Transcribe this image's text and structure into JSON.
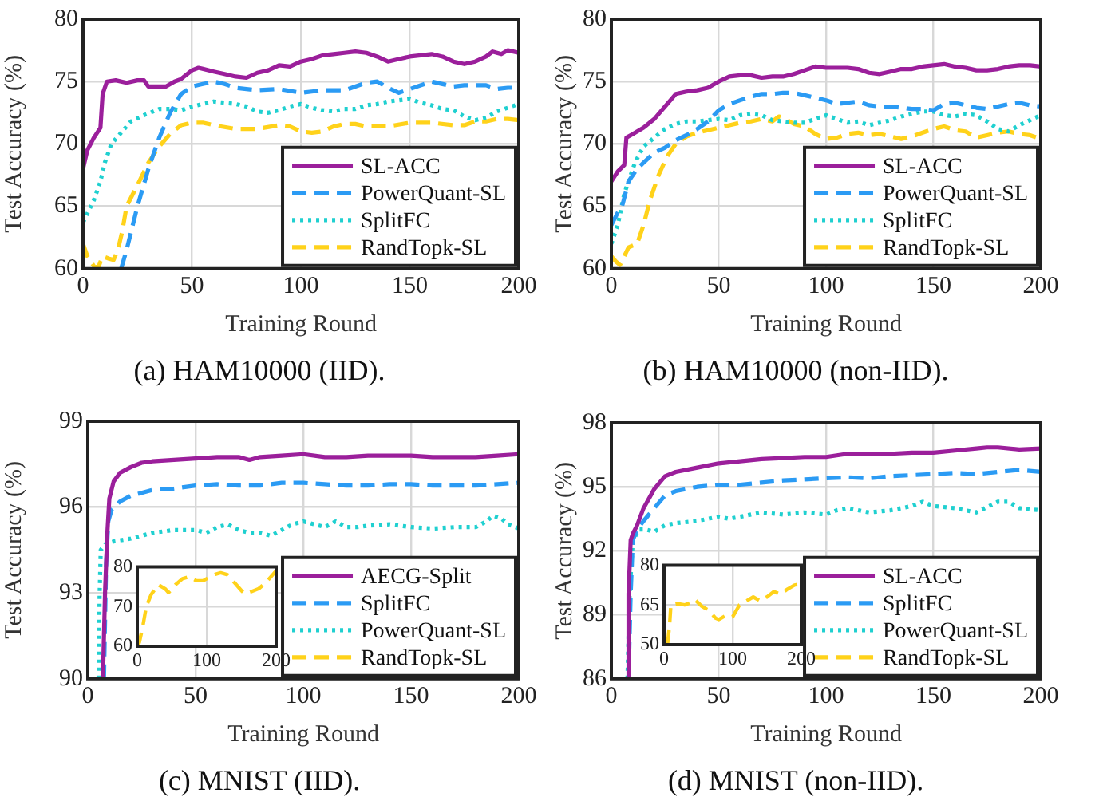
{
  "chart_data": [
    {
      "type": "line",
      "title": "(a) HAM10000 (IID).",
      "xlabel": "Training Round",
      "ylabel": "Test Accuracy (%)",
      "xlim": [
        0,
        200
      ],
      "xticks": [
        0,
        50,
        100,
        150,
        200
      ],
      "ylim": [
        60,
        80
      ],
      "yticks": [
        60,
        65,
        70,
        75,
        80
      ],
      "grid": true,
      "legend": "bottom right",
      "series": [
        {
          "name": "SL-ACC",
          "color": "#9b1f9b",
          "line_style": "solid",
          "x": [
            0,
            2,
            5,
            8,
            9,
            11,
            15,
            20,
            25,
            28,
            30,
            38,
            42,
            45,
            50,
            53,
            60,
            65,
            70,
            75,
            80,
            85,
            90,
            95,
            100,
            105,
            110,
            115,
            120,
            125,
            130,
            135,
            140,
            145,
            150,
            155,
            160,
            165,
            170,
            175,
            180,
            185,
            188,
            192,
            195,
            200
          ],
          "values": [
            68,
            69.5,
            70.5,
            71.3,
            74,
            75,
            75.1,
            74.9,
            75.1,
            75.1,
            74.6,
            74.6,
            75,
            75.2,
            75.9,
            76.1,
            75.8,
            75.6,
            75.4,
            75.3,
            75.7,
            75.9,
            76.3,
            76.2,
            76.6,
            76.8,
            77.1,
            77.2,
            77.3,
            77.4,
            77.3,
            77,
            76.6,
            76.8,
            77,
            77.1,
            77.2,
            77,
            76.6,
            76.4,
            76.6,
            77,
            77.4,
            77.2,
            77.5,
            77.3
          ]
        },
        {
          "name": "PowerQuant-SL",
          "color": "#2b9bf4",
          "line_style": "dashed",
          "x": [
            17.5,
            20,
            25,
            30,
            35,
            40,
            45,
            50,
            55,
            60,
            65,
            70,
            80,
            90,
            100,
            105,
            110,
            120,
            130,
            135,
            140,
            145,
            150,
            160,
            170,
            175,
            185,
            190,
            195,
            200
          ],
          "values": [
            60,
            61.5,
            65,
            68,
            70.5,
            72.5,
            74,
            74.6,
            74.8,
            75,
            74.8,
            74.5,
            74.3,
            74.4,
            74.1,
            74.2,
            74.3,
            74.3,
            74.9,
            75,
            74.5,
            74.1,
            74.4,
            75,
            74.6,
            74.7,
            74.7,
            74.4,
            74.5,
            74.5
          ]
        },
        {
          "name": "SplitFC",
          "color": "#1fd0d0",
          "line_style": "dotted",
          "x": [
            0,
            5,
            8,
            10,
            13,
            18,
            22,
            28,
            35,
            40,
            45,
            50,
            55,
            60,
            65,
            70,
            75,
            80,
            85,
            90,
            95,
            100,
            105,
            110,
            115,
            120,
            125,
            130,
            135,
            140,
            145,
            150,
            155,
            160,
            165,
            170,
            175,
            180,
            185,
            190,
            195,
            200
          ],
          "values": [
            63.7,
            65.5,
            67,
            68.5,
            70,
            71,
            71.8,
            72.3,
            72.8,
            72.8,
            72.7,
            73,
            73.2,
            73.4,
            73.3,
            73.2,
            73,
            72.6,
            72.5,
            72.7,
            73,
            73.2,
            72.9,
            72.7,
            72.6,
            72.8,
            72.8,
            73.1,
            73.2,
            73.4,
            73.5,
            73.6,
            73.3,
            73.1,
            72.8,
            72.7,
            72.2,
            71.9,
            72.1,
            72.6,
            72.9,
            73.2
          ]
        },
        {
          "name": "RandTopk-SL",
          "color": "#ffd21a",
          "line_style": "dashed",
          "x": [
            0,
            2,
            5,
            7,
            9,
            12,
            14,
            16,
            18,
            20,
            25,
            30,
            35,
            40,
            45,
            50,
            55,
            60,
            70,
            80,
            90,
            95,
            100,
            105,
            110,
            115,
            120,
            125,
            130,
            140,
            150,
            160,
            170,
            175,
            180,
            185,
            190,
            195,
            200
          ],
          "values": [
            62,
            61,
            60.2,
            60.1,
            61,
            60.8,
            60.7,
            61.5,
            63,
            65,
            66.7,
            68.5,
            69.8,
            70.8,
            71.5,
            71.7,
            71.7,
            71.5,
            71.2,
            71.2,
            71.5,
            71.4,
            71,
            70.9,
            71,
            71.4,
            71.6,
            71.6,
            71.4,
            71.4,
            71.7,
            71.7,
            71.5,
            71.5,
            71.8,
            71.8,
            72,
            72,
            71.9
          ]
        }
      ]
    },
    {
      "type": "line",
      "title": "(b) HAM10000 (non-IID).",
      "xlabel": "Training Round",
      "ylabel": "Test Accuracy (%)",
      "xlim": [
        0,
        200
      ],
      "xticks": [
        0,
        50,
        100,
        150,
        200
      ],
      "ylim": [
        60,
        80
      ],
      "yticks": [
        60,
        65,
        70,
        75,
        80
      ],
      "grid": true,
      "legend": "bottom right",
      "series": [
        {
          "name": "SL-ACC",
          "color": "#9b1f9b",
          "line_style": "solid",
          "x": [
            0,
            3,
            6,
            7,
            10,
            15,
            20,
            25,
            30,
            35,
            40,
            45,
            50,
            55,
            60,
            65,
            70,
            75,
            80,
            85,
            90,
            95,
            100,
            105,
            110,
            115,
            120,
            125,
            130,
            135,
            140,
            145,
            150,
            155,
            160,
            165,
            170,
            175,
            180,
            185,
            190,
            195,
            200
          ],
          "values": [
            67,
            67.8,
            68.3,
            70.5,
            70.8,
            71.3,
            72,
            73,
            74,
            74.2,
            74.3,
            74.5,
            75,
            75.4,
            75.5,
            75.5,
            75.3,
            75.4,
            75.4,
            75.6,
            75.9,
            76.2,
            76.1,
            76.1,
            76.1,
            76,
            75.7,
            75.6,
            75.8,
            76,
            76,
            76.2,
            76.3,
            76.4,
            76.2,
            76.1,
            75.9,
            75.9,
            76,
            76.2,
            76.3,
            76.3,
            76.2
          ]
        },
        {
          "name": "PowerQuant-SL",
          "color": "#2b9bf4",
          "line_style": "dashed",
          "x": [
            0,
            3,
            5,
            8,
            12,
            15,
            20,
            25,
            30,
            35,
            40,
            45,
            50,
            55,
            60,
            65,
            70,
            75,
            80,
            85,
            90,
            95,
            100,
            105,
            110,
            115,
            120,
            125,
            130,
            135,
            140,
            145,
            150,
            155,
            160,
            165,
            170,
            175,
            180,
            185,
            190,
            195,
            200
          ],
          "values": [
            63.5,
            64.5,
            65,
            67,
            68,
            68.5,
            69.3,
            69.7,
            70.3,
            70.7,
            71.2,
            71.8,
            72.7,
            73.2,
            73.5,
            73.8,
            74,
            74,
            74.1,
            74.1,
            73.9,
            73.7,
            73.5,
            73.2,
            73.3,
            73.4,
            73.1,
            73,
            73,
            72.9,
            72.8,
            72.8,
            72.7,
            73.2,
            73.3,
            73.1,
            72.9,
            72.8,
            73,
            73.2,
            73.3,
            73.1,
            73
          ]
        },
        {
          "name": "SplitFC",
          "color": "#1fd0d0",
          "line_style": "dotted",
          "x": [
            0,
            3,
            6,
            8,
            11,
            15,
            20,
            25,
            30,
            35,
            40,
            45,
            50,
            55,
            60,
            65,
            70,
            75,
            80,
            85,
            90,
            95,
            100,
            105,
            110,
            115,
            120,
            125,
            130,
            135,
            140,
            145,
            150,
            155,
            160,
            165,
            170,
            175,
            180,
            185,
            190,
            195,
            200
          ],
          "values": [
            62,
            63.5,
            66,
            67,
            68.5,
            69.8,
            70.5,
            71.2,
            71.6,
            71.8,
            71.8,
            71.9,
            72,
            71.9,
            72.3,
            72.4,
            72.3,
            71.9,
            71.8,
            71.7,
            71.7,
            72,
            72.3,
            72,
            71.7,
            71.8,
            71.5,
            71.7,
            71.9,
            72.2,
            72.4,
            72.6,
            72.6,
            72.3,
            72.2,
            72.4,
            72.3,
            71.8,
            71.2,
            71,
            71.5,
            71.9,
            72.3
          ]
        },
        {
          "name": "RandTopk-SL",
          "color": "#ffd21a",
          "line_style": "dashed",
          "x": [
            0,
            2,
            4,
            6,
            8,
            12,
            15,
            18,
            22,
            26,
            30,
            35,
            40,
            45,
            50,
            55,
            60,
            65,
            70,
            75,
            78,
            80,
            85,
            90,
            95,
            100,
            105,
            110,
            115,
            120,
            125,
            130,
            135,
            140,
            145,
            150,
            155,
            160,
            165,
            170,
            175,
            180,
            185,
            190,
            195,
            200
          ],
          "values": [
            61,
            60.6,
            60.3,
            61,
            61.7,
            62,
            63.5,
            65.5,
            67.5,
            69,
            70,
            70.6,
            70.9,
            71.1,
            71.3,
            71.5,
            71.7,
            71.8,
            72,
            71.8,
            72.2,
            72.1,
            71.6,
            71.4,
            70.8,
            70.4,
            70.5,
            70.8,
            70.9,
            70.7,
            70.8,
            70.6,
            70.4,
            70.6,
            70.9,
            71.2,
            71.4,
            71.1,
            71,
            70.5,
            70.7,
            70.9,
            71,
            70.8,
            70.7,
            70.4
          ]
        }
      ]
    },
    {
      "type": "line",
      "title": "(c) MNIST (IID).",
      "xlabel": "Training Round",
      "ylabel": "Test Accuracy (%)",
      "xlim": [
        0,
        200
      ],
      "xticks": [
        0,
        50,
        100,
        150,
        200
      ],
      "ylim": [
        90,
        99
      ],
      "yticks": [
        90,
        93,
        96,
        99
      ],
      "grid": true,
      "legend": "bottom right",
      "series": [
        {
          "name": "AECG-Split",
          "color": "#9b1f9b",
          "line_style": "solid",
          "x": [
            7,
            8,
            9,
            10,
            12,
            15,
            20,
            25,
            30,
            40,
            50,
            60,
            70,
            75,
            80,
            90,
            100,
            110,
            120,
            130,
            140,
            150,
            160,
            170,
            180,
            190,
            200
          ],
          "values": [
            90,
            93,
            95,
            96.3,
            96.9,
            97.2,
            97.4,
            97.55,
            97.6,
            97.65,
            97.7,
            97.75,
            97.75,
            97.65,
            97.75,
            97.8,
            97.85,
            97.75,
            97.75,
            97.8,
            97.8,
            97.8,
            97.75,
            97.75,
            97.75,
            97.8,
            97.85
          ]
        },
        {
          "name": "SplitFC",
          "color": "#2b9bf4",
          "line_style": "dashed",
          "x": [
            7.5,
            8.5,
            9.5,
            11,
            15,
            20,
            25,
            30,
            40,
            50,
            60,
            70,
            80,
            90,
            100,
            110,
            120,
            130,
            140,
            150,
            160,
            170,
            180,
            190,
            200
          ],
          "values": [
            90,
            94,
            95.5,
            95.9,
            96.2,
            96.4,
            96.5,
            96.6,
            96.65,
            96.75,
            96.8,
            96.75,
            96.75,
            96.85,
            96.85,
            96.8,
            96.75,
            96.75,
            96.8,
            96.8,
            96.75,
            96.75,
            96.75,
            96.8,
            96.85
          ]
        },
        {
          "name": "PowerQuant-SL",
          "color": "#1fd0d0",
          "line_style": "dotted",
          "x": [
            5,
            5.5,
            6,
            8,
            12,
            20,
            30,
            40,
            50,
            55,
            60,
            65,
            70,
            75,
            80,
            85,
            90,
            95,
            100,
            105,
            110,
            115,
            120,
            125,
            130,
            140,
            150,
            160,
            170,
            180,
            185,
            188,
            192,
            195,
            200
          ],
          "values": [
            90,
            93,
            94.5,
            94.7,
            94.8,
            94.9,
            95.1,
            95.2,
            95.2,
            95.1,
            95.3,
            95.4,
            95.2,
            95.1,
            95.1,
            95,
            95.2,
            95.4,
            95.5,
            95.4,
            95.3,
            95.5,
            95.3,
            95.3,
            95.35,
            95.4,
            95.3,
            95.25,
            95.3,
            95.3,
            95.5,
            95.7,
            95.6,
            95.4,
            95.25
          ]
        },
        {
          "name": "RandTopk-SL",
          "color": "#ffd21a",
          "line_style": "dashed"
        }
      ]
    },
    {
      "type": "line",
      "title": "(d) MNIST (non-IID).",
      "xlabel": "Training Round",
      "ylabel": "Test Accuracy (%)",
      "xlim": [
        0,
        200
      ],
      "xticks": [
        0,
        50,
        100,
        150,
        200
      ],
      "ylim": [
        86,
        98
      ],
      "yticks": [
        86,
        89,
        92,
        95,
        98
      ],
      "grid": true,
      "legend": "bottom right",
      "series": [
        {
          "name": "SL-ACC",
          "color": "#9b1f9b",
          "line_style": "solid",
          "x": [
            7.5,
            8,
            9,
            10,
            12,
            15,
            20,
            25,
            30,
            40,
            50,
            60,
            70,
            80,
            90,
            100,
            110,
            120,
            130,
            140,
            150,
            160,
            170,
            175,
            180,
            190,
            200
          ],
          "values": [
            86,
            90,
            92.5,
            92.8,
            93.2,
            94,
            94.9,
            95.5,
            95.7,
            95.9,
            96.1,
            96.2,
            96.3,
            96.35,
            96.4,
            96.4,
            96.55,
            96.55,
            96.55,
            96.6,
            96.6,
            96.7,
            96.8,
            96.85,
            96.85,
            96.75,
            96.8
          ]
        },
        {
          "name": "SplitFC",
          "color": "#2b9bf4",
          "line_style": "dashed",
          "x": [
            8,
            9,
            10,
            12,
            15,
            20,
            25,
            30,
            40,
            50,
            60,
            70,
            80,
            90,
            100,
            110,
            120,
            130,
            140,
            150,
            160,
            170,
            180,
            190,
            200
          ],
          "values": [
            86,
            90,
            92.5,
            93,
            93.4,
            94,
            94.6,
            94.8,
            95,
            95.1,
            95.1,
            95.2,
            95.3,
            95.35,
            95.4,
            95.45,
            95.4,
            95.5,
            95.55,
            95.6,
            95.65,
            95.6,
            95.7,
            95.8,
            95.7
          ]
        },
        {
          "name": "PowerQuant-SL",
          "color": "#1fd0d0",
          "line_style": "dotted",
          "x": [
            7.5,
            8.5,
            10,
            13,
            16,
            20,
            25,
            30,
            40,
            50,
            55,
            60,
            70,
            80,
            90,
            100,
            105,
            110,
            120,
            130,
            140,
            145,
            150,
            160,
            170,
            180,
            185,
            190,
            200
          ],
          "values": [
            86,
            90,
            92.5,
            93,
            93,
            92.9,
            93.2,
            93.3,
            93.4,
            93.6,
            93.5,
            93.6,
            93.8,
            93.7,
            93.8,
            93.7,
            93.9,
            94,
            93.8,
            93.9,
            94.1,
            94.3,
            94.1,
            94,
            93.8,
            94.3,
            94.3,
            94,
            93.9
          ]
        },
        {
          "name": "RandTopk-SL",
          "color": "#ffd21a",
          "line_style": "dashed"
        }
      ]
    },
    {
      "type": "line",
      "xlim": [
        0,
        200
      ],
      "xticks": [
        0,
        100,
        200
      ],
      "ylim": [
        60,
        80
      ],
      "yticks": [
        60,
        70,
        80
      ],
      "grid": true,
      "series": [
        {
          "color": "#ffd21a",
          "line_style": "dashed",
          "x": [
            0,
            3,
            8,
            13,
            20,
            30,
            40,
            45,
            55,
            65,
            75,
            85,
            95,
            110,
            120,
            130,
            140,
            150,
            155,
            165,
            175,
            185,
            195,
            200
          ],
          "values": [
            60,
            61,
            65,
            70,
            73,
            75.5,
            74.5,
            73.5,
            75.5,
            77,
            77.5,
            76.5,
            76.5,
            78,
            78.5,
            78,
            76,
            74,
            73.2,
            73.8,
            74.5,
            76,
            78,
            79
          ]
        }
      ]
    },
    {
      "type": "line",
      "xlim": [
        0,
        200
      ],
      "xticks": [
        0,
        100,
        200
      ],
      "ylim": [
        50,
        80
      ],
      "yticks": [
        50,
        65,
        80
      ],
      "grid": true,
      "series": [
        {
          "color": "#ffd21a",
          "line_style": "dashed",
          "x": [
            5,
            8,
            10,
            20,
            30,
            40,
            45,
            55,
            65,
            75,
            80,
            90,
            100,
            110,
            120,
            130,
            140,
            150,
            160,
            170,
            180,
            190,
            200
          ],
          "values": [
            50,
            57,
            65,
            65.5,
            65,
            66,
            67,
            64.5,
            63,
            60,
            59.5,
            61,
            60.5,
            65,
            66.5,
            68,
            66.5,
            68,
            70,
            69,
            71,
            72.5,
            73
          ]
        }
      ]
    }
  ]
}
